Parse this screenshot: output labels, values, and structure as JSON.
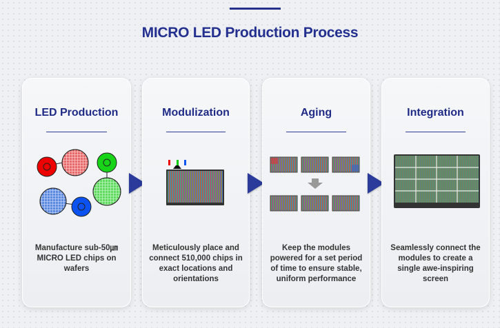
{
  "title": "MICRO LED Production Process",
  "steps": [
    {
      "heading": "LED Production",
      "description": "Manufacture sub-50㎛ MICRO LED chips on wafers"
    },
    {
      "heading": "Modulization",
      "description": "Meticulously place and connect 510,000 chips in exact locations and orientations"
    },
    {
      "heading": "Aging",
      "description": "Keep the modules powered for a set period of time to ensure stable, uniform performance"
    },
    {
      "heading": "Integration",
      "description": "Seamlessly connect the modules to create a single awe-inspiring screen"
    }
  ],
  "colors": {
    "accent": "#23308f",
    "arrow": "#2a3b9c"
  }
}
